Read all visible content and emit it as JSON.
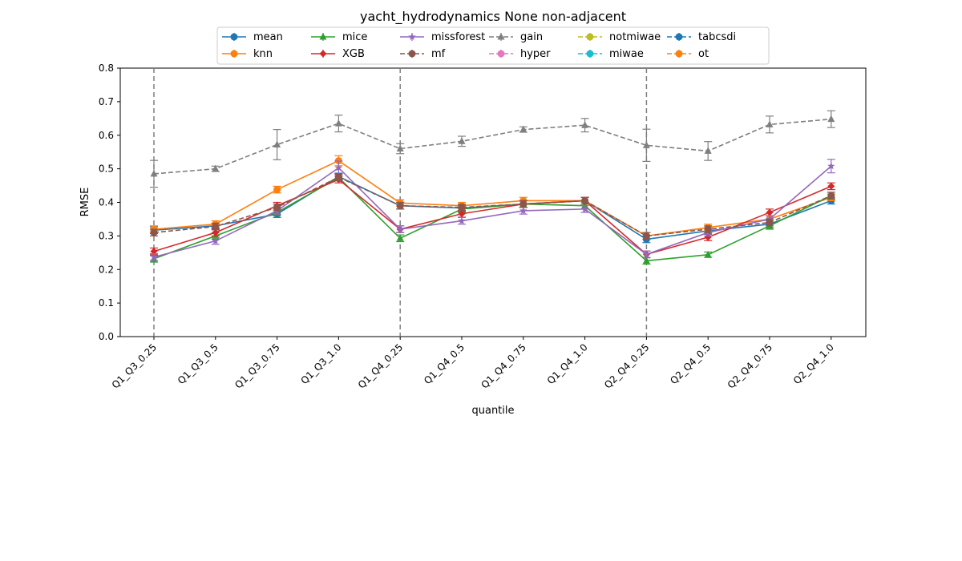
{
  "chart_data": {
    "type": "line",
    "title": "yacht_hydrodynamics None non-adjacent",
    "xlabel": "quantile",
    "ylabel": "RMSE",
    "ylim": [
      0,
      0.8
    ],
    "yticks": [
      "0.0",
      "0.1",
      "0.2",
      "0.3",
      "0.4",
      "0.5",
      "0.6",
      "0.7",
      "0.8"
    ],
    "categories": [
      "Q1_Q3_0.25",
      "Q1_Q3_0.5",
      "Q1_Q3_0.75",
      "Q1_Q3_1.0",
      "Q1_Q4_0.25",
      "Q1_Q4_0.5",
      "Q1_Q4_0.75",
      "Q1_Q4_1.0",
      "Q2_Q4_0.25",
      "Q2_Q4_0.5",
      "Q2_Q4_0.75",
      "Q2_Q4_1.0"
    ],
    "vlines_at": [
      "Q1_Q3_0.25",
      "Q1_Q4_0.25",
      "Q2_Q4_0.25"
    ],
    "grid": false,
    "legend_position": "top",
    "series": [
      {
        "name": "mean",
        "color": "#1f77b4",
        "marker": "circle",
        "linestyle": "solid",
        "values": [
          0.317,
          0.33,
          0.365,
          0.477,
          0.39,
          0.383,
          0.395,
          0.405,
          0.29,
          0.315,
          0.335,
          0.405
        ],
        "errors": [
          0.01,
          0.008,
          0.01,
          0.01,
          0.01,
          0.01,
          0.01,
          0.01,
          0.01,
          0.01,
          0.01,
          0.01
        ]
      },
      {
        "name": "knn",
        "color": "#ff7f0e",
        "marker": "circle",
        "linestyle": "solid",
        "values": [
          0.32,
          0.335,
          0.438,
          0.524,
          0.398,
          0.39,
          0.405,
          0.405,
          0.3,
          0.325,
          0.35,
          0.415
        ],
        "errors": [
          0.01,
          0.01,
          0.01,
          0.015,
          0.01,
          0.01,
          0.01,
          0.01,
          0.01,
          0.01,
          0.01,
          0.01
        ]
      },
      {
        "name": "mice",
        "color": "#2ca02c",
        "marker": "triangle",
        "linestyle": "solid",
        "values": [
          0.232,
          0.3,
          0.37,
          0.474,
          0.293,
          0.38,
          0.395,
          0.39,
          0.226,
          0.244,
          0.33,
          0.42
        ],
        "errors": [
          0.01,
          0.01,
          0.01,
          0.01,
          0.01,
          0.01,
          0.01,
          0.01,
          0.01,
          0.008,
          0.01,
          0.01
        ]
      },
      {
        "name": "XGB",
        "color": "#d62728",
        "marker": "diamond",
        "linestyle": "solid",
        "values": [
          0.254,
          0.31,
          0.39,
          0.468,
          0.32,
          0.366,
          0.395,
          0.405,
          0.245,
          0.296,
          0.37,
          0.448
        ],
        "errors": [
          0.01,
          0.01,
          0.01,
          0.01,
          0.01,
          0.01,
          0.01,
          0.01,
          0.01,
          0.01,
          0.01,
          0.01
        ]
      },
      {
        "name": "missforest",
        "color": "#9467bd",
        "marker": "star",
        "linestyle": "solid",
        "values": [
          0.237,
          0.285,
          0.375,
          0.503,
          0.32,
          0.345,
          0.375,
          0.38,
          0.245,
          0.31,
          0.35,
          0.508
        ],
        "errors": [
          0.01,
          0.01,
          0.01,
          0.02,
          0.01,
          0.01,
          0.01,
          0.01,
          0.01,
          0.01,
          0.01,
          0.02
        ]
      },
      {
        "name": "mf",
        "color": "#8c564b",
        "marker": "circle",
        "linestyle": "dashed",
        "values": [
          0.31,
          0.328,
          0.385,
          0.475,
          0.39,
          0.385,
          0.395,
          0.405,
          0.3,
          0.32,
          0.34,
          0.42
        ],
        "errors": [
          0.01,
          0.01,
          0.01,
          0.01,
          0.01,
          0.01,
          0.01,
          0.01,
          0.01,
          0.01,
          0.01,
          0.01
        ]
      },
      {
        "name": "gain",
        "color": "#7f7f7f",
        "marker": "triangle",
        "linestyle": "dashed",
        "values": [
          0.485,
          0.5,
          0.572,
          0.635,
          0.56,
          0.582,
          0.617,
          0.63,
          0.57,
          0.553,
          0.632,
          0.648
        ],
        "errors": [
          0.04,
          0.008,
          0.045,
          0.025,
          0.015,
          0.015,
          0.008,
          0.02,
          0.048,
          0.028,
          0.025,
          0.025
        ]
      },
      {
        "name": "hyper",
        "color": "#e377c2",
        "marker": "circle",
        "linestyle": "dashed"
      },
      {
        "name": "notmiwae",
        "color": "#bcbd22",
        "marker": "circle",
        "linestyle": "dashed"
      },
      {
        "name": "miwae",
        "color": "#17becf",
        "marker": "circle",
        "linestyle": "dashed"
      },
      {
        "name": "tabcsdi",
        "color": "#1f77b4",
        "marker": "circle",
        "linestyle": "dashed"
      },
      {
        "name": "ot",
        "color": "#ff7f0e",
        "marker": "circle",
        "linestyle": "dashed"
      }
    ]
  }
}
